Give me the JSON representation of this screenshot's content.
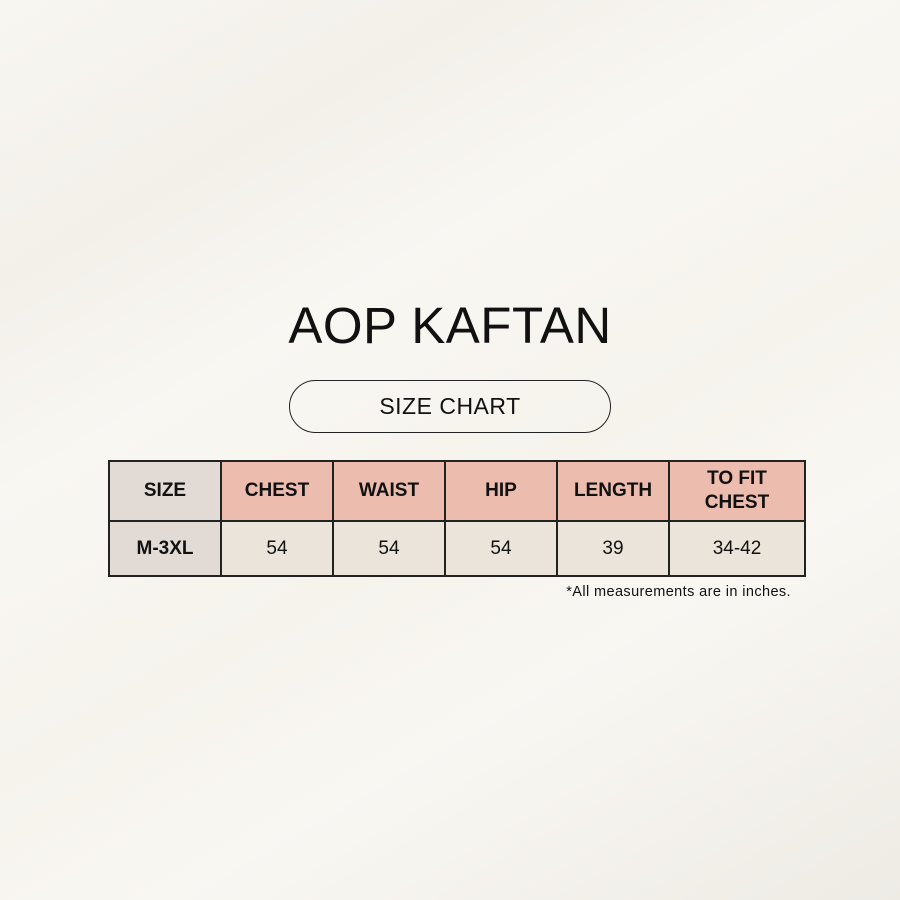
{
  "title": "AOP KAFTAN",
  "subtitle": "SIZE CHART",
  "table": {
    "headers": [
      "SIZE",
      "CHEST",
      "WAIST",
      "HIP",
      "LENGTH",
      "TO FIT CHEST"
    ],
    "rows": [
      [
        "M-3XL",
        "54",
        "54",
        "54",
        "39",
        "34-42"
      ]
    ]
  },
  "note": "*All measurements are in inches.",
  "colors": {
    "header": "#ecbcae",
    "size_column": "#e1dad5",
    "cell": "#ebe4da"
  }
}
